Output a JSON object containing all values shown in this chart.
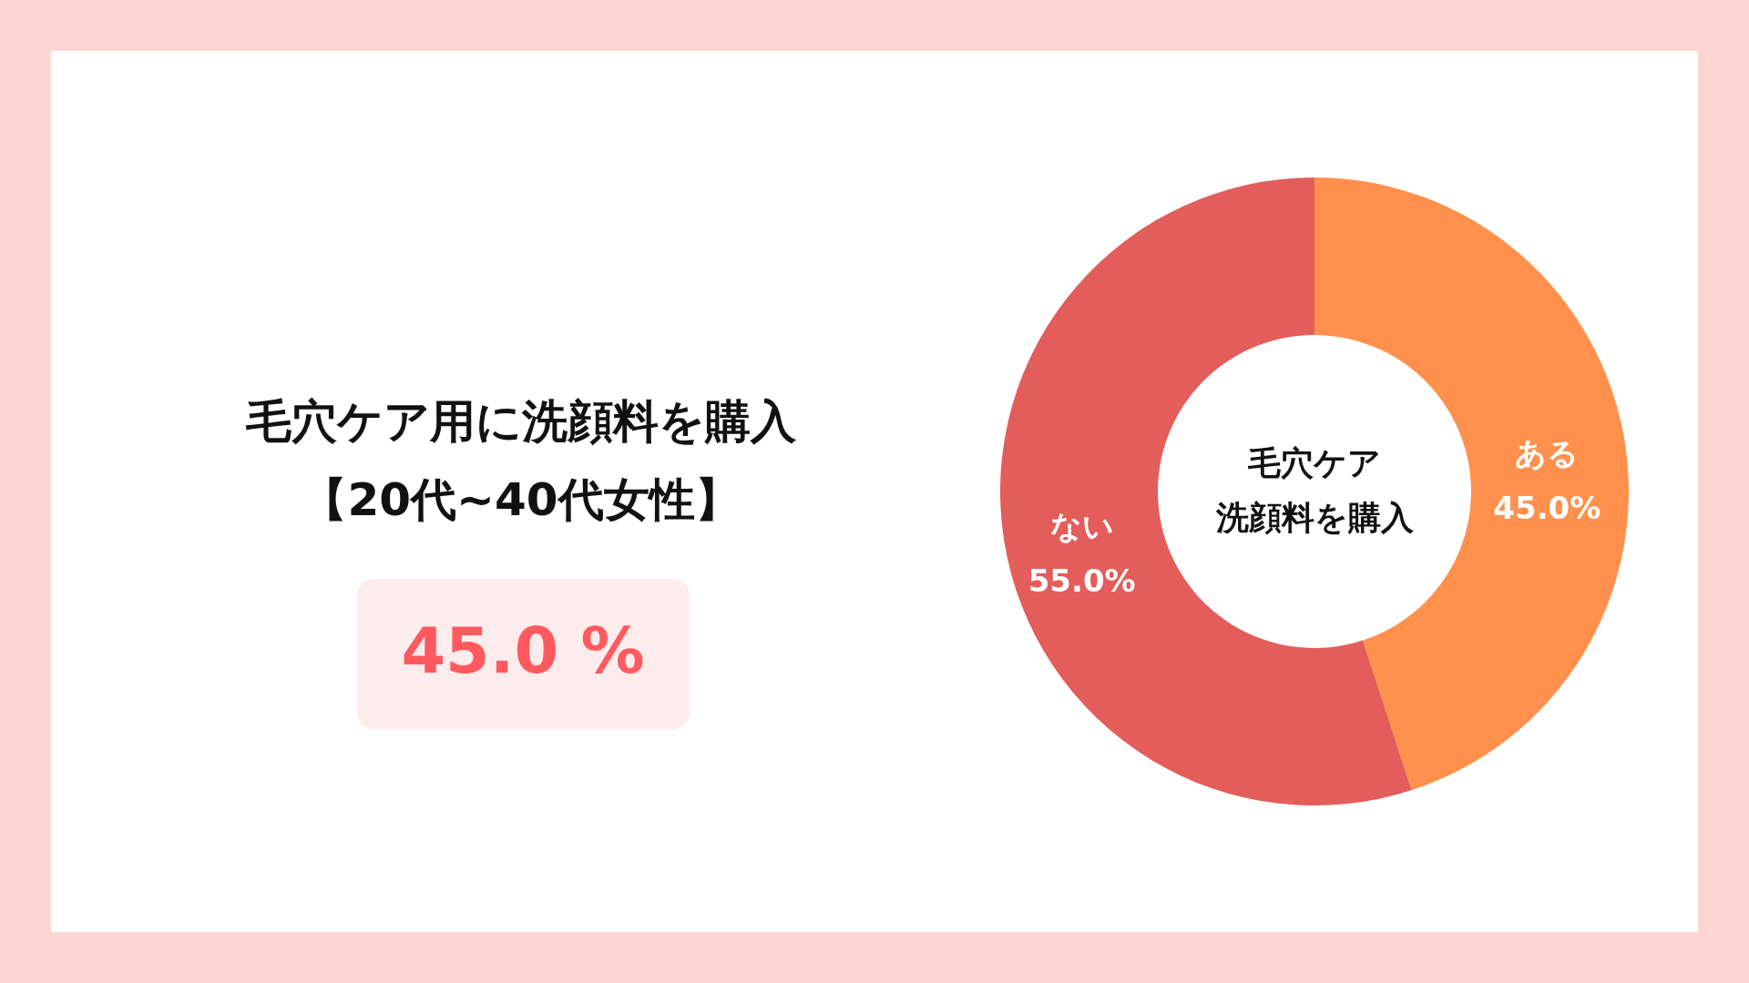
{
  "chart_data": {
    "type": "donut",
    "title": "毛穴ケア用に洗顔料を購入",
    "subtitle": "【20代~40代女性】",
    "categories": [
      "ある",
      "ない"
    ],
    "values": [
      45.0,
      55.0
    ],
    "colors": [
      "#ff914d",
      "#e35d5a"
    ],
    "value_labels": [
      "45.0%",
      "55.0%"
    ],
    "legend": false,
    "annotations": [
      "45.0 %",
      "毛穴ケア",
      "洗顔料を購入"
    ]
  }
}
